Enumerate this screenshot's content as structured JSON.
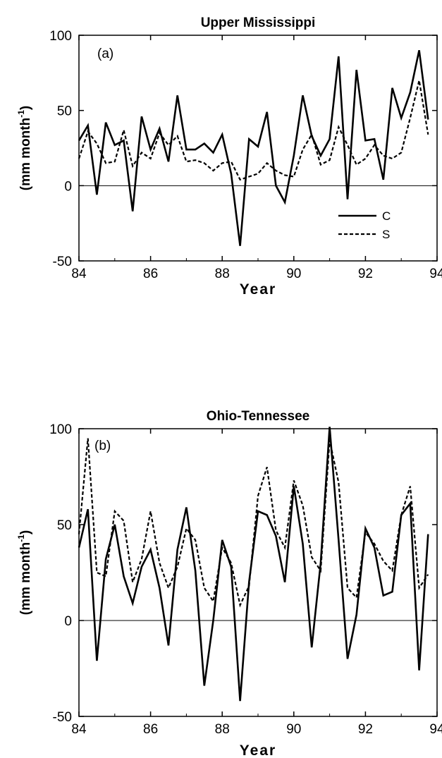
{
  "chart_data": [
    {
      "type": "line",
      "title": "Upper Mississippi",
      "panel_label": "(a)",
      "xlabel": "Year",
      "ylabel": "(mm month",
      "ylabel_sup": "-1",
      "ylabel_close": ")",
      "xlim": [
        84,
        94
      ],
      "ylim": [
        -50,
        100
      ],
      "x_ticks": [
        "84",
        "86",
        "88",
        "90",
        "92",
        "94"
      ],
      "y_ticks": [
        "100",
        "50",
        "0",
        "-50"
      ],
      "legend": {
        "placement": "bottom-right",
        "entries": [
          "C",
          "S"
        ]
      },
      "series": [
        {
          "name": "C",
          "style": "solid",
          "points": [
            [
              84.0,
              30
            ],
            [
              84.25,
              40
            ],
            [
              84.5,
              -6
            ],
            [
              84.75,
              42
            ],
            [
              85.0,
              27
            ],
            [
              85.25,
              30
            ],
            [
              85.5,
              -17
            ],
            [
              85.75,
              46
            ],
            [
              86.0,
              24
            ],
            [
              86.25,
              38
            ],
            [
              86.5,
              16
            ],
            [
              86.75,
              60
            ],
            [
              87.0,
              24
            ],
            [
              87.25,
              24
            ],
            [
              87.5,
              28
            ],
            [
              87.75,
              22
            ],
            [
              88.0,
              34
            ],
            [
              88.25,
              8
            ],
            [
              88.5,
              -40
            ],
            [
              88.75,
              31
            ],
            [
              89.0,
              26
            ],
            [
              89.25,
              49
            ],
            [
              89.5,
              0
            ],
            [
              89.75,
              -11
            ],
            [
              90.0,
              20
            ],
            [
              90.25,
              60
            ],
            [
              90.5,
              33
            ],
            [
              90.75,
              20
            ],
            [
              91.0,
              31
            ],
            [
              91.25,
              86
            ],
            [
              91.5,
              -9
            ],
            [
              91.75,
              77
            ],
            [
              92.0,
              30
            ],
            [
              92.25,
              31
            ],
            [
              92.5,
              4
            ],
            [
              92.75,
              65
            ],
            [
              93.0,
              45
            ],
            [
              93.25,
              62
            ],
            [
              93.5,
              90
            ],
            [
              93.75,
              44
            ]
          ]
        },
        {
          "name": "S",
          "style": "dashed",
          "points": [
            [
              84.0,
              18
            ],
            [
              84.25,
              36
            ],
            [
              84.5,
              28
            ],
            [
              84.75,
              15
            ],
            [
              85.0,
              16
            ],
            [
              85.25,
              37
            ],
            [
              85.5,
              13
            ],
            [
              85.75,
              22
            ],
            [
              86.0,
              18
            ],
            [
              86.25,
              35
            ],
            [
              86.5,
              27
            ],
            [
              86.75,
              33
            ],
            [
              87.0,
              16
            ],
            [
              87.25,
              17
            ],
            [
              87.5,
              15
            ],
            [
              87.75,
              10
            ],
            [
              88.0,
              15
            ],
            [
              88.25,
              16
            ],
            [
              88.5,
              4
            ],
            [
              88.75,
              6
            ],
            [
              89.0,
              8
            ],
            [
              89.25,
              15
            ],
            [
              89.5,
              10
            ],
            [
              89.75,
              7
            ],
            [
              90.0,
              6
            ],
            [
              90.25,
              24
            ],
            [
              90.5,
              34
            ],
            [
              90.75,
              14
            ],
            [
              91.0,
              17
            ],
            [
              91.25,
              39
            ],
            [
              91.5,
              27
            ],
            [
              91.75,
              14
            ],
            [
              92.0,
              18
            ],
            [
              92.25,
              27
            ],
            [
              92.5,
              20
            ],
            [
              92.75,
              18
            ],
            [
              93.0,
              22
            ],
            [
              93.25,
              45
            ],
            [
              93.5,
              70
            ],
            [
              93.75,
              34
            ]
          ]
        }
      ]
    },
    {
      "type": "line",
      "title": "Ohio-Tennessee",
      "panel_label": "(b)",
      "xlabel": "Year",
      "ylabel": "(mm month",
      "ylabel_sup": "-1",
      "ylabel_close": ")",
      "xlim": [
        84,
        94
      ],
      "ylim": [
        -50,
        100
      ],
      "x_ticks": [
        "84",
        "86",
        "88",
        "90",
        "92",
        "94"
      ],
      "y_ticks": [
        "100",
        "50",
        "0",
        "-50"
      ],
      "series": [
        {
          "name": "C",
          "style": "solid",
          "points": [
            [
              84.0,
              38
            ],
            [
              84.25,
              58
            ],
            [
              84.5,
              -21
            ],
            [
              84.75,
              32
            ],
            [
              85.0,
              50
            ],
            [
              85.25,
              23
            ],
            [
              85.5,
              9
            ],
            [
              85.75,
              28
            ],
            [
              86.0,
              37
            ],
            [
              86.25,
              17
            ],
            [
              86.5,
              -13
            ],
            [
              86.75,
              37
            ],
            [
              87.0,
              59
            ],
            [
              87.25,
              26
            ],
            [
              87.5,
              -34
            ],
            [
              87.75,
              0
            ],
            [
              88.0,
              42
            ],
            [
              88.25,
              28
            ],
            [
              88.5,
              -42
            ],
            [
              88.75,
              20
            ],
            [
              89.0,
              57
            ],
            [
              89.25,
              55
            ],
            [
              89.5,
              44
            ],
            [
              89.75,
              20
            ],
            [
              90.0,
              70
            ],
            [
              90.25,
              40
            ],
            [
              90.5,
              -14
            ],
            [
              90.75,
              30
            ],
            [
              91.0,
              101
            ],
            [
              91.25,
              42
            ],
            [
              91.5,
              -20
            ],
            [
              91.75,
              3
            ],
            [
              92.0,
              48
            ],
            [
              92.25,
              38
            ],
            [
              92.5,
              13
            ],
            [
              92.75,
              15
            ],
            [
              93.0,
              55
            ],
            [
              93.25,
              61
            ],
            [
              93.5,
              -26
            ],
            [
              93.75,
              45
            ]
          ]
        },
        {
          "name": "S",
          "style": "dashed",
          "points": [
            [
              84.0,
              45
            ],
            [
              84.25,
              95
            ],
            [
              84.5,
              25
            ],
            [
              84.75,
              23
            ],
            [
              85.0,
              57
            ],
            [
              85.25,
              52
            ],
            [
              85.5,
              20
            ],
            [
              85.75,
              32
            ],
            [
              86.0,
              57
            ],
            [
              86.25,
              30
            ],
            [
              86.5,
              17
            ],
            [
              86.75,
              28
            ],
            [
              87.0,
              48
            ],
            [
              87.25,
              42
            ],
            [
              87.5,
              17
            ],
            [
              87.75,
              10
            ],
            [
              88.0,
              38
            ],
            [
              88.25,
              30
            ],
            [
              88.5,
              8
            ],
            [
              88.75,
              18
            ],
            [
              89.0,
              65
            ],
            [
              89.25,
              80
            ],
            [
              89.5,
              47
            ],
            [
              89.75,
              38
            ],
            [
              90.0,
              73
            ],
            [
              90.25,
              60
            ],
            [
              90.5,
              33
            ],
            [
              90.75,
              26
            ],
            [
              91.0,
              94
            ],
            [
              91.25,
              72
            ],
            [
              91.5,
              17
            ],
            [
              91.75,
              12
            ],
            [
              92.0,
              46
            ],
            [
              92.25,
              40
            ],
            [
              92.5,
              31
            ],
            [
              92.75,
              26
            ],
            [
              93.0,
              55
            ],
            [
              93.25,
              70
            ],
            [
              93.5,
              17
            ],
            [
              93.75,
              24
            ]
          ]
        }
      ]
    }
  ]
}
